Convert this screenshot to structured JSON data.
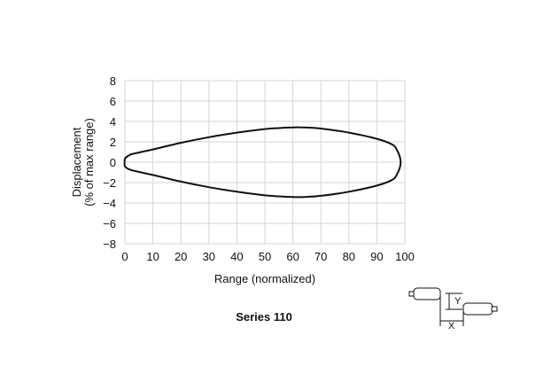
{
  "caption": "Series 110",
  "diagram": {
    "x_label": "X",
    "y_label": "Y"
  },
  "chart_data": {
    "type": "line",
    "title": "",
    "xlabel": "Range (normalized)",
    "ylabel_lines": [
      "Displacement",
      "(% of max range)"
    ],
    "xlim": [
      0,
      100
    ],
    "ylim": [
      -8,
      8
    ],
    "x_ticks": [
      0,
      10,
      20,
      30,
      40,
      50,
      60,
      70,
      80,
      90,
      100
    ],
    "y_ticks": [
      8,
      6,
      4,
      2,
      0,
      -2,
      -4,
      -6,
      -8
    ],
    "y_tick_labels": [
      "8",
      "6",
      "4",
      "2",
      "0",
      "−2",
      "−4",
      "−6",
      "−8"
    ],
    "grid": true,
    "series": [
      {
        "x": [
          0,
          2,
          5,
          10,
          20,
          30,
          40,
          50,
          55,
          60,
          62,
          65,
          70,
          80,
          90,
          95,
          97,
          98.5
        ],
        "upper": [
          0.4,
          0.75,
          0.95,
          1.25,
          1.9,
          2.45,
          2.9,
          3.25,
          3.35,
          3.42,
          3.43,
          3.4,
          3.3,
          2.9,
          2.3,
          1.8,
          1.3,
          0
        ],
        "lower": [
          -0.4,
          -0.75,
          -0.95,
          -1.25,
          -1.9,
          -2.45,
          -2.9,
          -3.25,
          -3.35,
          -3.42,
          -3.43,
          -3.4,
          -3.3,
          -2.9,
          -2.3,
          -1.8,
          -1.3,
          0
        ]
      }
    ]
  }
}
